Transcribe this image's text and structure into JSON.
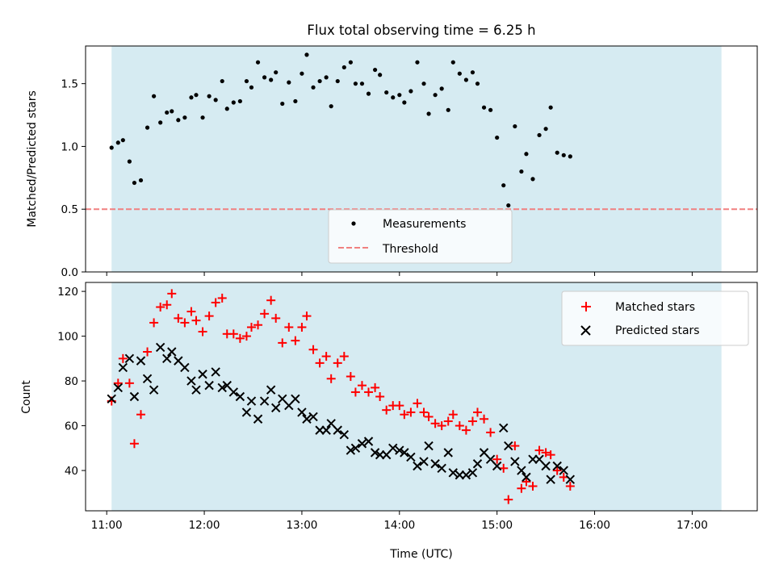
{
  "chart_data": [
    {
      "type": "scatter",
      "title": "Flux total observing time = 6.25 h",
      "xlabel": "",
      "ylabel": "Matched/Predicted stars",
      "ylim": [
        0,
        1.8
      ],
      "yticks": [
        "0.0",
        "0.5",
        "1.0",
        "1.5"
      ],
      "xlim": [
        "10:47",
        "17:40"
      ],
      "shaded_span": [
        "11:03",
        "17:18"
      ],
      "shade_color": "#add8e6",
      "legend_position": "lower center",
      "threshold": {
        "name": "Threshold",
        "value": 0.5,
        "color": "#f08080",
        "style": "dashed"
      },
      "series": [
        {
          "name": "Measurements",
          "marker": "dot",
          "color": "#000000",
          "points": [
            [
              "11:03",
              0.99
            ],
            [
              "11:07",
              1.03
            ],
            [
              "11:10",
              1.05
            ],
            [
              "11:14",
              0.88
            ],
            [
              "11:17",
              0.71
            ],
            [
              "11:21",
              0.73
            ],
            [
              "11:25",
              1.15
            ],
            [
              "11:29",
              1.4
            ],
            [
              "11:33",
              1.19
            ],
            [
              "11:37",
              1.27
            ],
            [
              "11:40",
              1.28
            ],
            [
              "11:44",
              1.21
            ],
            [
              "11:48",
              1.23
            ],
            [
              "11:52",
              1.39
            ],
            [
              "11:55",
              1.41
            ],
            [
              "11:59",
              1.23
            ],
            [
              "12:03",
              1.4
            ],
            [
              "12:07",
              1.37
            ],
            [
              "12:11",
              1.52
            ],
            [
              "12:14",
              1.3
            ],
            [
              "12:18",
              1.35
            ],
            [
              "12:22",
              1.36
            ],
            [
              "12:26",
              1.52
            ],
            [
              "12:29",
              1.47
            ],
            [
              "12:33",
              1.67
            ],
            [
              "12:37",
              1.55
            ],
            [
              "12:41",
              1.53
            ],
            [
              "12:44",
              1.59
            ],
            [
              "12:48",
              1.34
            ],
            [
              "12:52",
              1.51
            ],
            [
              "12:56",
              1.36
            ],
            [
              "13:00",
              1.58
            ],
            [
              "13:03",
              1.73
            ],
            [
              "13:07",
              1.47
            ],
            [
              "13:11",
              1.52
            ],
            [
              "13:15",
              1.55
            ],
            [
              "13:18",
              1.32
            ],
            [
              "13:22",
              1.52
            ],
            [
              "13:26",
              1.63
            ],
            [
              "13:30",
              1.67
            ],
            [
              "13:33",
              1.5
            ],
            [
              "13:37",
              1.5
            ],
            [
              "13:41",
              1.42
            ],
            [
              "13:45",
              1.61
            ],
            [
              "13:48",
              1.57
            ],
            [
              "13:52",
              1.43
            ],
            [
              "13:56",
              1.39
            ],
            [
              "14:00",
              1.41
            ],
            [
              "14:03",
              1.35
            ],
            [
              "14:07",
              1.44
            ],
            [
              "14:11",
              1.67
            ],
            [
              "14:15",
              1.5
            ],
            [
              "14:18",
              1.26
            ],
            [
              "14:22",
              1.41
            ],
            [
              "14:26",
              1.46
            ],
            [
              "14:30",
              1.29
            ],
            [
              "14:33",
              1.67
            ],
            [
              "14:37",
              1.58
            ],
            [
              "14:41",
              1.53
            ],
            [
              "14:45",
              1.59
            ],
            [
              "14:48",
              1.5
            ],
            [
              "14:52",
              1.31
            ],
            [
              "14:56",
              1.29
            ],
            [
              "15:00",
              1.07
            ],
            [
              "15:04",
              0.69
            ],
            [
              "15:07",
              0.53
            ],
            [
              "15:11",
              1.16
            ],
            [
              "15:15",
              0.8
            ],
            [
              "15:18",
              0.94
            ],
            [
              "15:22",
              0.74
            ],
            [
              "15:26",
              1.09
            ],
            [
              "15:30",
              1.14
            ],
            [
              "15:33",
              1.31
            ],
            [
              "15:37",
              0.95
            ],
            [
              "15:41",
              0.93
            ],
            [
              "15:45",
              0.92
            ]
          ]
        }
      ]
    },
    {
      "type": "scatter",
      "title": "",
      "xlabel": "Time (UTC)",
      "ylabel": "Count",
      "ylim": [
        22,
        124
      ],
      "yticks": [
        "40",
        "60",
        "80",
        "100",
        "120"
      ],
      "xticks": [
        "11:00",
        "12:00",
        "13:00",
        "14:00",
        "15:00",
        "16:00",
        "17:00"
      ],
      "xlim": [
        "10:47",
        "17:40"
      ],
      "shaded_span": [
        "11:03",
        "17:18"
      ],
      "shade_color": "#add8e6",
      "legend_position": "top-right",
      "series": [
        {
          "name": "Matched stars",
          "marker": "plus",
          "color": "#ff0000",
          "points": [
            [
              "11:03",
              71
            ],
            [
              "11:07",
              79
            ],
            [
              "11:10",
              90
            ],
            [
              "11:14",
              79
            ],
            [
              "11:17",
              52
            ],
            [
              "11:21",
              65
            ],
            [
              "11:25",
              93
            ],
            [
              "11:29",
              106
            ],
            [
              "11:33",
              113
            ],
            [
              "11:37",
              114
            ],
            [
              "11:40",
              119
            ],
            [
              "11:44",
              108
            ],
            [
              "11:48",
              106
            ],
            [
              "11:52",
              111
            ],
            [
              "11:55",
              107
            ],
            [
              "11:59",
              102
            ],
            [
              "12:03",
              109
            ],
            [
              "12:07",
              115
            ],
            [
              "12:11",
              117
            ],
            [
              "12:14",
              101
            ],
            [
              "12:18",
              101
            ],
            [
              "12:22",
              99
            ],
            [
              "12:26",
              100
            ],
            [
              "12:29",
              104
            ],
            [
              "12:33",
              105
            ],
            [
              "12:37",
              110
            ],
            [
              "12:41",
              116
            ],
            [
              "12:44",
              108
            ],
            [
              "12:48",
              97
            ],
            [
              "12:52",
              104
            ],
            [
              "12:56",
              98
            ],
            [
              "13:00",
              104
            ],
            [
              "13:03",
              109
            ],
            [
              "13:07",
              94
            ],
            [
              "13:11",
              88
            ],
            [
              "13:15",
              91
            ],
            [
              "13:18",
              81
            ],
            [
              "13:22",
              88
            ],
            [
              "13:26",
              91
            ],
            [
              "13:30",
              82
            ],
            [
              "13:33",
              75
            ],
            [
              "13:37",
              78
            ],
            [
              "13:41",
              75
            ],
            [
              "13:45",
              77
            ],
            [
              "13:48",
              73
            ],
            [
              "13:52",
              67
            ],
            [
              "13:56",
              69
            ],
            [
              "14:00",
              69
            ],
            [
              "14:03",
              65
            ],
            [
              "14:07",
              66
            ],
            [
              "14:11",
              70
            ],
            [
              "14:15",
              66
            ],
            [
              "14:18",
              64
            ],
            [
              "14:22",
              61
            ],
            [
              "14:26",
              60
            ],
            [
              "14:30",
              62
            ],
            [
              "14:33",
              65
            ],
            [
              "14:37",
              60
            ],
            [
              "14:41",
              58
            ],
            [
              "14:45",
              62
            ],
            [
              "14:48",
              66
            ],
            [
              "14:52",
              63
            ],
            [
              "14:56",
              57
            ],
            [
              "15:00",
              45
            ],
            [
              "15:04",
              41
            ],
            [
              "15:07",
              27
            ],
            [
              "15:11",
              51
            ],
            [
              "15:15",
              32
            ],
            [
              "15:18",
              35
            ],
            [
              "15:22",
              33
            ],
            [
              "15:26",
              49
            ],
            [
              "15:30",
              48
            ],
            [
              "15:33",
              47
            ],
            [
              "15:37",
              40
            ],
            [
              "15:41",
              37
            ],
            [
              "15:45",
              33
            ]
          ]
        },
        {
          "name": "Predicted stars",
          "marker": "x",
          "color": "#000000",
          "points": [
            [
              "11:03",
              72
            ],
            [
              "11:07",
              77
            ],
            [
              "11:10",
              86
            ],
            [
              "11:14",
              90
            ],
            [
              "11:17",
              73
            ],
            [
              "11:21",
              89
            ],
            [
              "11:25",
              81
            ],
            [
              "11:29",
              76
            ],
            [
              "11:33",
              95
            ],
            [
              "11:37",
              90
            ],
            [
              "11:40",
              93
            ],
            [
              "11:44",
              89
            ],
            [
              "11:48",
              86
            ],
            [
              "11:52",
              80
            ],
            [
              "11:55",
              76
            ],
            [
              "11:59",
              83
            ],
            [
              "12:03",
              78
            ],
            [
              "12:07",
              84
            ],
            [
              "12:11",
              77
            ],
            [
              "12:14",
              78
            ],
            [
              "12:18",
              75
            ],
            [
              "12:22",
              73
            ],
            [
              "12:26",
              66
            ],
            [
              "12:29",
              71
            ],
            [
              "12:33",
              63
            ],
            [
              "12:37",
              71
            ],
            [
              "12:41",
              76
            ],
            [
              "12:44",
              68
            ],
            [
              "12:48",
              72
            ],
            [
              "12:52",
              69
            ],
            [
              "12:56",
              72
            ],
            [
              "13:00",
              66
            ],
            [
              "13:03",
              63
            ],
            [
              "13:07",
              64
            ],
            [
              "13:11",
              58
            ],
            [
              "13:15",
              58
            ],
            [
              "13:18",
              61
            ],
            [
              "13:22",
              58
            ],
            [
              "13:26",
              56
            ],
            [
              "13:30",
              49
            ],
            [
              "13:33",
              50
            ],
            [
              "13:37",
              52
            ],
            [
              "13:41",
              53
            ],
            [
              "13:45",
              48
            ],
            [
              "13:48",
              47
            ],
            [
              "13:52",
              47
            ],
            [
              "13:56",
              50
            ],
            [
              "14:00",
              49
            ],
            [
              "14:03",
              48
            ],
            [
              "14:07",
              46
            ],
            [
              "14:11",
              42
            ],
            [
              "14:15",
              44
            ],
            [
              "14:18",
              51
            ],
            [
              "14:22",
              43
            ],
            [
              "14:26",
              41
            ],
            [
              "14:30",
              48
            ],
            [
              "14:33",
              39
            ],
            [
              "14:37",
              38
            ],
            [
              "14:41",
              38
            ],
            [
              "14:45",
              39
            ],
            [
              "14:48",
              43
            ],
            [
              "14:52",
              48
            ],
            [
              "14:56",
              45
            ],
            [
              "15:00",
              42
            ],
            [
              "15:04",
              59
            ],
            [
              "15:07",
              51
            ],
            [
              "15:11",
              44
            ],
            [
              "15:15",
              40
            ],
            [
              "15:18",
              37
            ],
            [
              "15:22",
              45
            ],
            [
              "15:26",
              45
            ],
            [
              "15:30",
              42
            ],
            [
              "15:33",
              36
            ],
            [
              "15:37",
              42
            ],
            [
              "15:41",
              40
            ],
            [
              "15:45",
              36
            ]
          ]
        }
      ]
    }
  ]
}
